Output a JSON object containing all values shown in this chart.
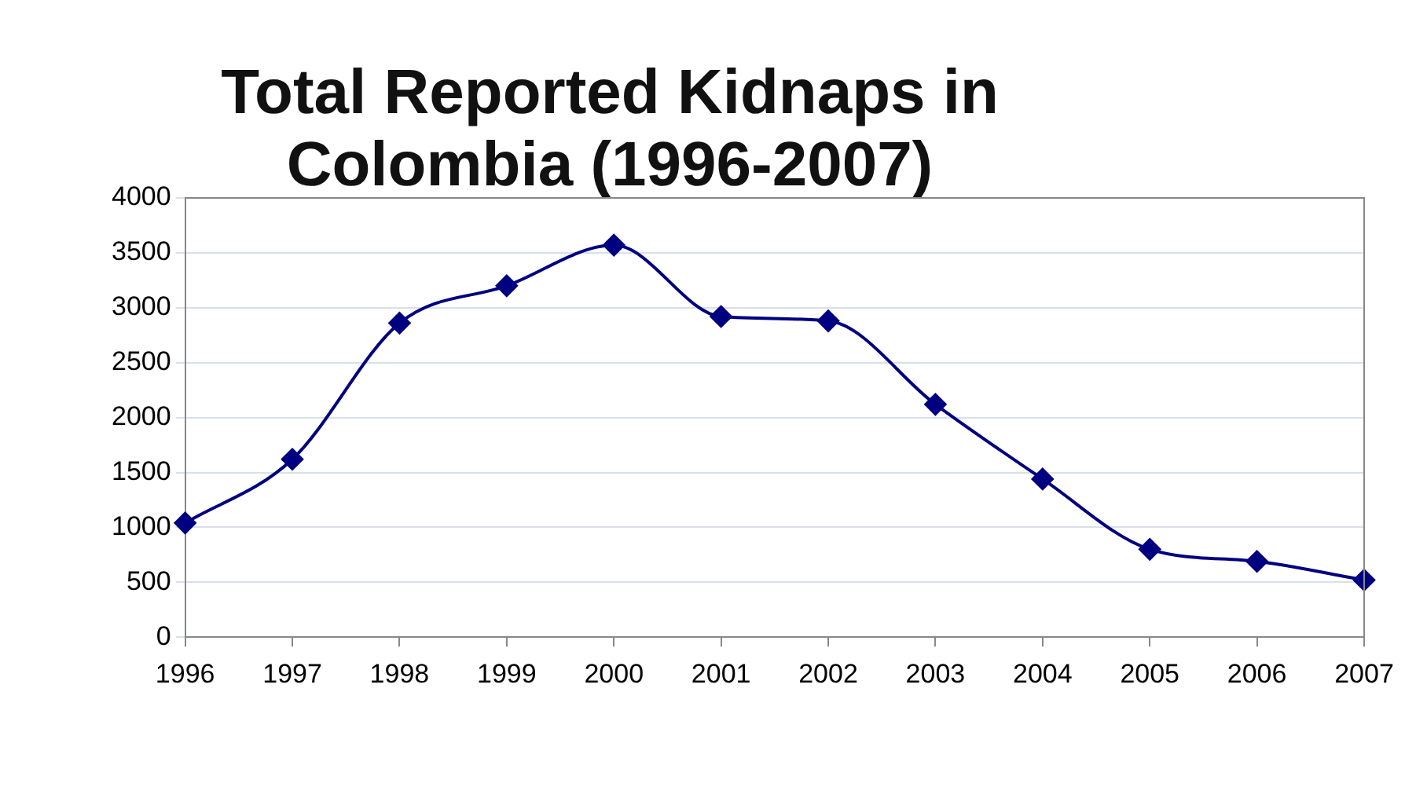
{
  "chart_data": {
    "type": "line",
    "title": "Total Reported Kidnaps in Colombia (1996-2007)",
    "categories": [
      "1996",
      "1997",
      "1998",
      "1999",
      "2000",
      "2001",
      "2002",
      "2003",
      "2004",
      "2005",
      "2006",
      "2007"
    ],
    "series": [
      {
        "color": "#000080",
        "values": [
          1040,
          1620,
          2860,
          3200,
          3570,
          2920,
          2880,
          2120,
          1440,
          800,
          690,
          520
        ]
      }
    ],
    "ylim": [
      0,
      4000
    ],
    "yticks": [
      0,
      500,
      1000,
      1500,
      2000,
      2500,
      3000,
      3500,
      4000
    ],
    "grid": "y",
    "legend": false,
    "marker": "diamond",
    "line_style": "solid"
  }
}
